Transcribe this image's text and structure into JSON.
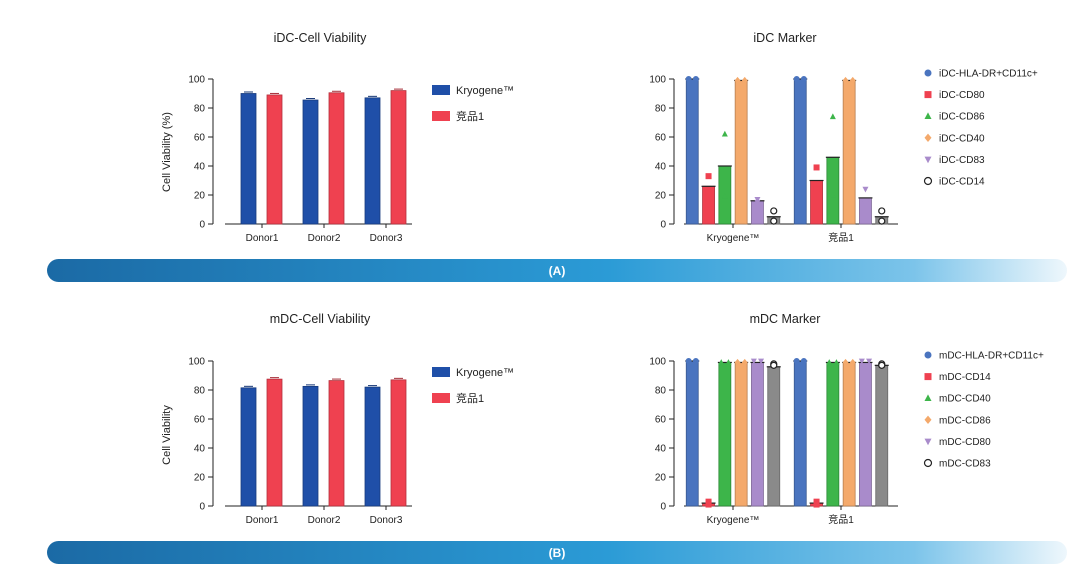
{
  "colors": {
    "kryogene": "#1f4fa8",
    "competitor": "#ef4150",
    "band_start": "#1a6fa8",
    "band_end": "#e8f4fb"
  },
  "panels": [
    {
      "label": "(A)"
    },
    {
      "label": "(B)"
    }
  ],
  "chart_data": [
    {
      "type": "bar",
      "title": "iDC-Cell Viability",
      "ylabel": "Cell Viability (%)",
      "xlabel": "",
      "ylim": [
        0,
        100
      ],
      "yticks": [
        0,
        20,
        40,
        60,
        80,
        100
      ],
      "categories": [
        "Donor1",
        "Donor2",
        "Donor3"
      ],
      "legend": "right",
      "series": [
        {
          "name": "Kryogene™",
          "color": "#1f4fa8",
          "values": [
            90,
            85.5,
            87
          ]
        },
        {
          "name": "竞品1",
          "color": "#ef4150",
          "values": [
            89,
            90.5,
            92
          ]
        }
      ]
    },
    {
      "type": "bar",
      "title": "iDC Marker",
      "xlabel": "",
      "ylabel": "",
      "ylim": [
        0,
        100
      ],
      "yticks": [
        0,
        20,
        40,
        60,
        80,
        100
      ],
      "categories": [
        "Kryogene™",
        "竞品1"
      ],
      "legend": "right",
      "series": [
        {
          "name": "iDC-HLA-DR+CD11c+",
          "color": "#4a74bf",
          "marker": "circle",
          "values": [
            100,
            100
          ],
          "points": [
            [
              100,
              100
            ],
            [
              100,
              100
            ]
          ]
        },
        {
          "name": "iDC-CD80",
          "color": "#ef4150",
          "marker": "square",
          "values": [
            26,
            30
          ],
          "points": [
            [
              33,
              22
            ],
            [
              39,
              24
            ]
          ]
        },
        {
          "name": "iDC-CD86",
          "color": "#3db54a",
          "marker": "triangle",
          "values": [
            40,
            46
          ],
          "points": [
            [
              62,
              19
            ],
            [
              74,
              20
            ]
          ]
        },
        {
          "name": "iDC-CD40",
          "color": "#f4a96b",
          "marker": "diamond",
          "values": [
            99,
            99
          ],
          "points": [
            [
              99,
              99
            ],
            [
              99,
              99
            ]
          ]
        },
        {
          "name": "iDC-CD83",
          "color": "#a98bcb",
          "marker": "triangle-down",
          "values": [
            16,
            18
          ],
          "points": [
            [
              17,
              15
            ],
            [
              24,
              14
            ]
          ]
        },
        {
          "name": "iDC-CD14",
          "color": "#8a8a8a",
          "marker": "open-circle",
          "values": [
            5,
            5
          ],
          "points": [
            [
              9,
              2
            ],
            [
              9,
              2
            ]
          ]
        }
      ]
    },
    {
      "type": "bar",
      "title": "mDC-Cell Viability",
      "ylabel": "Cell Viability",
      "xlabel": "",
      "ylim": [
        0,
        100
      ],
      "yticks": [
        0,
        20,
        40,
        60,
        80,
        100
      ],
      "categories": [
        "Donor1",
        "Donor2",
        "Donor3"
      ],
      "legend": "right",
      "series": [
        {
          "name": "Kryogene™",
          "color": "#1f4fa8",
          "values": [
            81.5,
            82.5,
            82
          ]
        },
        {
          "name": "竞品1",
          "color": "#ef4150",
          "values": [
            87.5,
            86.5,
            87
          ]
        }
      ]
    },
    {
      "type": "bar",
      "title": "mDC Marker",
      "xlabel": "",
      "ylabel": "",
      "ylim": [
        0,
        100
      ],
      "yticks": [
        0,
        20,
        40,
        60,
        80,
        100
      ],
      "categories": [
        "Kryogene™",
        "竞品1"
      ],
      "legend": "right",
      "series": [
        {
          "name": "mDC-HLA-DR+CD11c+",
          "color": "#4a74bf",
          "marker": "circle",
          "values": [
            100,
            100
          ],
          "points": [
            [
              100,
              100
            ],
            [
              100,
              100
            ]
          ]
        },
        {
          "name": "mDC-CD14",
          "color": "#ef4150",
          "marker": "square",
          "values": [
            2,
            2
          ],
          "points": [
            [
              3,
              1
            ],
            [
              3,
              1
            ]
          ]
        },
        {
          "name": "mDC-CD40",
          "color": "#3db54a",
          "marker": "triangle",
          "values": [
            99,
            99
          ],
          "points": [
            [
              99,
              99
            ],
            [
              99,
              99
            ]
          ]
        },
        {
          "name": "mDC-CD86",
          "color": "#f4a96b",
          "marker": "diamond",
          "values": [
            99,
            99
          ],
          "points": [
            [
              99,
              99
            ],
            [
              99,
              99
            ]
          ]
        },
        {
          "name": "mDC-CD80",
          "color": "#a98bcb",
          "marker": "triangle-down",
          "values": [
            99,
            99
          ],
          "points": [
            [
              100,
              100
            ],
            [
              100,
              100
            ]
          ]
        },
        {
          "name": "mDC-CD83",
          "color": "#8a8a8a",
          "marker": "open-circle",
          "values": [
            96,
            97
          ],
          "points": [
            [
              98,
              97
            ],
            [
              98,
              97
            ]
          ]
        }
      ]
    }
  ]
}
